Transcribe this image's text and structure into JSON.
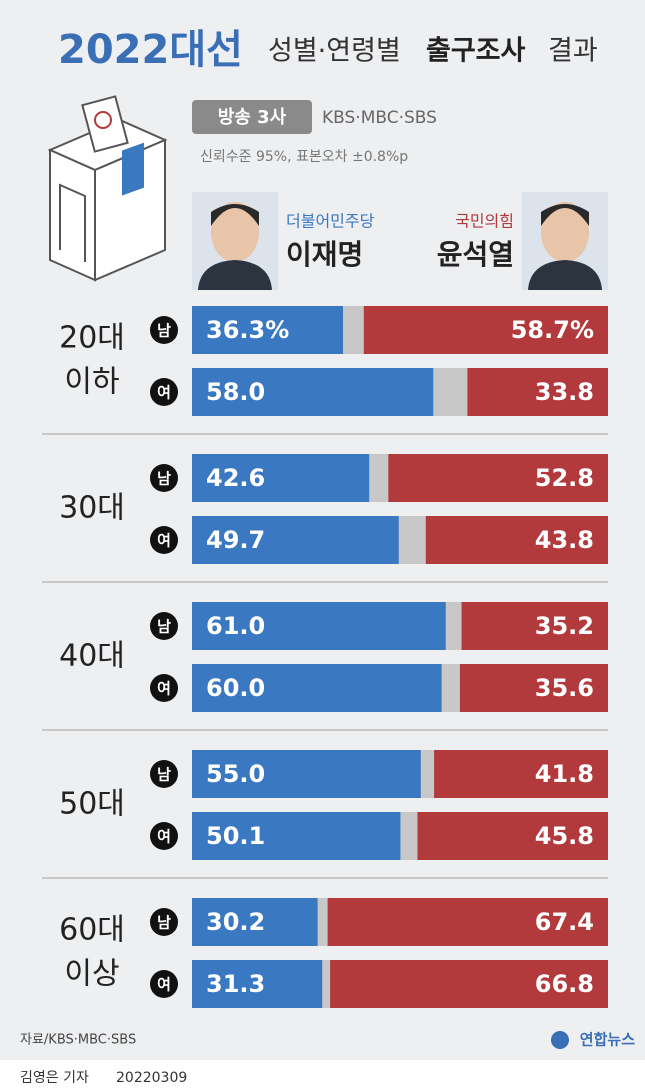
{
  "chart_data": {
    "type": "bar",
    "title": "2022대선",
    "subtitle": [
      "성별·연령별",
      "출구조사",
      "결과"
    ],
    "source_badge": "방송 3사",
    "broadcasters": "KBS·MBC·SBS",
    "note": "신뢰수준 95%, 표본오차 ±0.8%p",
    "groups": [
      [
        "20대",
        "이하"
      ],
      [
        "30대"
      ],
      [
        "40대"
      ],
      [
        "50대"
      ],
      [
        "60대",
        "이상"
      ]
    ],
    "categories": [
      "남",
      "여",
      "남",
      "여",
      "남",
      "여",
      "남",
      "여",
      "남",
      "여"
    ],
    "xlim": [
      0,
      100
    ],
    "series": [
      {
        "name": "이재명",
        "party": "더불어민주당",
        "color": "#3a78c1",
        "values": [
          36.3,
          58.0,
          42.6,
          49.7,
          61.0,
          60.0,
          55.0,
          50.1,
          30.2,
          31.3
        ],
        "value_labels": [
          "36.3%",
          "58.0",
          "42.6",
          "49.7",
          "61.0",
          "60.0",
          "55.0",
          "50.1",
          "30.2",
          "31.3"
        ]
      },
      {
        "name": "윤석열",
        "party": "국민의힘",
        "color": "#b23a3c",
        "values": [
          58.7,
          33.8,
          52.8,
          43.8,
          35.2,
          35.6,
          41.8,
          45.8,
          67.4,
          66.8
        ],
        "value_labels": [
          "58.7%",
          "33.8",
          "52.8",
          "43.8",
          "35.2",
          "35.6",
          "41.8",
          "45.8",
          "67.4",
          "66.8"
        ]
      }
    ],
    "source": "자료/KBS·MBC·SBS",
    "agency": "연합뉴스",
    "reporter": "김영은 기자",
    "date": "20220309"
  }
}
